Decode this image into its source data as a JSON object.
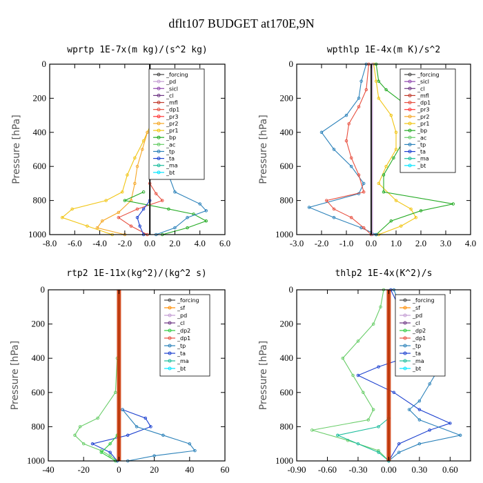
{
  "title": "dflt107  BUDGET at170E,9N",
  "colors": {
    "forcing": "#444444",
    "pd": "#c39bd3",
    "sicl": "#8e44ad",
    "cl": "#6c3483",
    "mfl": "#c0392b",
    "dp1": "#e74c3c",
    "pr3": "#ff3333",
    "pr2": "#f5a623",
    "pr1": "#f1c40f",
    "bp": "#22aa22",
    "ac": "#66cc66",
    "tp": "#2980b9",
    "ta": "#1a3fcf",
    "ma": "#1abc9c",
    "bt": "#00e5ff",
    "sf": "#ff8c00",
    "dp2": "#2ecc40"
  },
  "chart_data": [
    {
      "type": "line",
      "title": "wprtp  1E-7x(m kg)/(s^2 kg)",
      "ylabel": "Pressure [hPa]",
      "xlim": [
        -8,
        6
      ],
      "ylim": [
        1000,
        0
      ],
      "xticks": [
        "-8.0",
        "-6.0",
        "-4.0",
        "-2.0",
        "0.0",
        "2.0",
        "4.0",
        "6.0"
      ],
      "xtick_values": [
        -8,
        -6,
        -4,
        -2,
        0,
        2,
        4,
        6
      ],
      "yticks": [
        "0",
        "200",
        "400",
        "600",
        "800",
        "1000"
      ],
      "ytick_values": [
        0,
        200,
        400,
        600,
        800,
        1000
      ],
      "legend": [
        "_forcing",
        "_pd",
        "_sicl",
        "_cl",
        "_mfl",
        "_dp1",
        "_pr3",
        "_pr2",
        "_pr1",
        "_bp",
        "_ac",
        "_tp",
        "_ta",
        "_ma",
        "_bt"
      ],
      "legend_position": "top-right",
      "series": [
        {
          "name": "_forcing",
          "key": "forcing",
          "y": [
            0,
            1000
          ],
          "x": [
            0,
            0
          ]
        },
        {
          "name": "_pr1",
          "key": "pr1",
          "y": [
            350,
            450,
            550,
            650,
            750,
            800,
            850,
            900,
            950,
            1000
          ],
          "x": [
            0.1,
            -0.5,
            -1.2,
            -1.8,
            -2.2,
            -3.5,
            -6.2,
            -7.0,
            -5.0,
            -3.0
          ]
        },
        {
          "name": "_pr2",
          "key": "pr2",
          "y": [
            400,
            500,
            600,
            700,
            800,
            870,
            920,
            960,
            1000
          ],
          "x": [
            -0.2,
            -0.6,
            -1.0,
            -1.2,
            -1.5,
            -2.5,
            -3.8,
            -4.2,
            -2.0
          ]
        },
        {
          "name": "_dp1",
          "key": "dp1",
          "y": [
            700,
            760,
            800,
            850,
            900,
            950,
            1000
          ],
          "x": [
            0,
            0.5,
            1.0,
            -1.0,
            -2.5,
            -1.5,
            -0.2
          ]
        },
        {
          "name": "_bp",
          "key": "bp",
          "y": [
            750,
            800,
            850,
            880,
            920,
            960,
            1000
          ],
          "x": [
            -0.5,
            -2.0,
            1.5,
            3.5,
            4.5,
            3.0,
            1.0
          ]
        },
        {
          "name": "_tp",
          "key": "tp",
          "y": [
            350,
            450,
            550,
            650,
            750,
            820,
            860,
            900,
            960,
            1000
          ],
          "x": [
            0.2,
            0.6,
            1.0,
            1.5,
            2.0,
            4.0,
            4.5,
            3.0,
            2.0,
            0.5
          ]
        },
        {
          "name": "_ta",
          "key": "ta",
          "y": [
            800,
            850,
            900,
            950,
            1000
          ],
          "x": [
            0,
            -0.5,
            -1.0,
            -0.8,
            -0.5
          ]
        }
      ]
    },
    {
      "type": "line",
      "title": "wpthlp  1E-4x(m K)/s^2",
      "ylabel": "Pressure [hPa]",
      "xlim": [
        -3,
        4
      ],
      "ylim": [
        1000,
        0
      ],
      "xticks": [
        "-3.0",
        "-2.0",
        "-1.0",
        "0.0",
        "1.0",
        "2.0",
        "3.0",
        "4.0"
      ],
      "xtick_values": [
        -3,
        -2,
        -1,
        0,
        1,
        2,
        3,
        4
      ],
      "yticks": [
        "0",
        "200",
        "400",
        "600",
        "800",
        "1000"
      ],
      "ytick_values": [
        0,
        200,
        400,
        600,
        800,
        1000
      ],
      "legend": [
        "_forcing",
        "_sicl",
        "_cl",
        "_mfl",
        "_dp1",
        "_pr3",
        "_pr2",
        "_pr1",
        "_bp",
        "_ac",
        "_tp",
        "_ta",
        "_ma",
        "_bt"
      ],
      "legend_position": "top-right",
      "series": [
        {
          "name": "_forcing",
          "key": "forcing",
          "y": [
            0,
            1000
          ],
          "x": [
            0,
            0
          ]
        },
        {
          "name": "_pr1",
          "key": "pr1",
          "y": [
            0,
            100,
            200,
            300,
            400,
            500,
            600,
            700,
            800,
            850,
            900,
            950,
            1000
          ],
          "x": [
            0.1,
            0.2,
            0.3,
            0.8,
            1.0,
            1.0,
            0.6,
            0.3,
            1.0,
            1.6,
            1.8,
            1.2,
            0.3
          ]
        },
        {
          "name": "_bp",
          "key": "bp",
          "y": [
            0,
            100,
            150,
            250,
            350,
            450,
            550,
            650,
            750,
            820,
            860,
            920,
            1000
          ],
          "x": [
            0.2,
            0.3,
            0.6,
            1.5,
            1.8,
            1.3,
            0.9,
            0.5,
            0.5,
            3.3,
            2.0,
            0.8,
            0.2
          ]
        },
        {
          "name": "_tp",
          "key": "tp",
          "y": [
            0,
            100,
            200,
            300,
            400,
            500,
            600,
            700,
            760,
            840,
            900,
            960,
            1000
          ],
          "x": [
            -0.2,
            -0.4,
            -0.5,
            -1.0,
            -2.0,
            -1.5,
            -0.8,
            -0.3,
            -0.5,
            -2.5,
            -1.5,
            -0.4,
            0.2
          ]
        },
        {
          "name": "_dp1",
          "key": "dp1",
          "y": [
            0,
            150,
            250,
            350,
            450,
            550,
            650,
            750,
            800,
            850,
            900,
            960,
            1000
          ],
          "x": [
            -0.1,
            -0.2,
            -0.5,
            -0.9,
            -1.0,
            -0.8,
            -0.5,
            -0.3,
            -1.8,
            -1.5,
            -0.8,
            -0.3,
            0
          ]
        },
        {
          "name": "_pd",
          "key": "pd",
          "y": [
            0,
            1000
          ],
          "x": [
            0.05,
            0.05
          ]
        }
      ]
    },
    {
      "type": "line",
      "title": "rtp2  1E-11x(kg^2)/(kg^2 s)",
      "ylabel": "Pressure [hPa]",
      "xlim": [
        -40,
        60
      ],
      "ylim": [
        1000,
        0
      ],
      "xticks": [
        "-40",
        "-20",
        "0",
        "20",
        "40",
        "60"
      ],
      "xtick_values": [
        -40,
        -20,
        0,
        20,
        40,
        60
      ],
      "yticks": [
        "0",
        "200",
        "400",
        "600",
        "800",
        "1000"
      ],
      "ytick_values": [
        0,
        200,
        400,
        600,
        800,
        1000
      ],
      "legend": [
        "_forcing",
        "_sf",
        "_pd",
        "_cl",
        "_dp2",
        "_dp1",
        "_tp",
        "_ta",
        "_ma",
        "_bt"
      ],
      "legend_position": "top-right",
      "series": [
        {
          "name": "_forcing",
          "key": "forcing",
          "y": [
            0,
            1000
          ],
          "x": [
            0,
            0
          ]
        },
        {
          "name": "_dp1",
          "key": "ac",
          "y": [
            400,
            600,
            750,
            800,
            850,
            900,
            940,
            970,
            1000
          ],
          "x": [
            -1,
            -2,
            -12,
            -22,
            -25,
            -20,
            -10,
            -5,
            -1
          ]
        },
        {
          "name": "_ta",
          "key": "ta",
          "y": [
            700,
            750,
            800,
            850,
            900,
            950,
            1000
          ],
          "x": [
            2,
            15,
            18,
            5,
            -15,
            -5,
            -1
          ]
        },
        {
          "name": "_tp",
          "key": "tp",
          "y": [
            700,
            800,
            850,
            900,
            940,
            970,
            1000
          ],
          "x": [
            2,
            10,
            25,
            40,
            43,
            20,
            5
          ]
        },
        {
          "name": "_dp2",
          "key": "dp2",
          "y": [
            850,
            900,
            950,
            1000
          ],
          "x": [
            -1,
            -5,
            -10,
            -2
          ]
        }
      ]
    },
    {
      "type": "line",
      "title": "thlp2  1E-4x(K^2)/s",
      "ylabel": "Pressure [hPa]",
      "xlim": [
        -0.9,
        0.8
      ],
      "ylim": [
        1000,
        0
      ],
      "xticks": [
        "-0.90",
        "-0.60",
        "-0.30",
        "0.00",
        "0.30",
        "0.60"
      ],
      "xtick_values": [
        -0.9,
        -0.6,
        -0.3,
        0,
        0.3,
        0.6
      ],
      "yticks": [
        "0",
        "200",
        "400",
        "600",
        "800",
        "1000"
      ],
      "ytick_values": [
        0,
        200,
        400,
        600,
        800,
        1000
      ],
      "legend": [
        "_forcing",
        "_sf",
        "_pd",
        "_cl",
        "_dp2",
        "_dp1",
        "_tp",
        "_ta",
        "_ma",
        "_bt"
      ],
      "legend_position": "top-right",
      "series": [
        {
          "name": "_forcing",
          "key": "forcing",
          "y": [
            0,
            1000
          ],
          "x": [
            0,
            0
          ]
        },
        {
          "name": "_dp1",
          "key": "ac",
          "y": [
            0,
            100,
            200,
            300,
            400,
            500,
            600,
            700,
            760,
            820,
            880,
            940,
            1000
          ],
          "x": [
            -0.05,
            -0.08,
            -0.15,
            -0.3,
            -0.45,
            -0.35,
            -0.25,
            -0.15,
            -0.2,
            -0.75,
            -0.4,
            -0.1,
            0
          ]
        },
        {
          "name": "_ta",
          "key": "ta",
          "y": [
            0,
            100,
            200,
            300,
            400,
            450,
            500,
            600,
            700,
            780,
            820,
            900,
            1000
          ],
          "x": [
            0.02,
            0.1,
            0.2,
            0.3,
            0.15,
            -0.1,
            -0.3,
            0.05,
            0.3,
            0.6,
            0.4,
            0.1,
            0
          ]
        },
        {
          "name": "_tp",
          "key": "tp",
          "y": [
            0,
            150,
            250,
            350,
            450,
            550,
            650,
            700,
            760,
            850,
            900,
            950,
            1000
          ],
          "x": [
            0.05,
            0.15,
            0.3,
            0.45,
            0.5,
            0.4,
            0.3,
            0.2,
            0.3,
            0.7,
            0.3,
            0.1,
            0
          ]
        },
        {
          "name": "_ma",
          "key": "ma",
          "y": [
            750,
            800,
            850,
            900,
            950,
            1000
          ],
          "x": [
            0,
            -0.1,
            -0.5,
            -0.3,
            -0.1,
            0
          ]
        }
      ]
    }
  ]
}
